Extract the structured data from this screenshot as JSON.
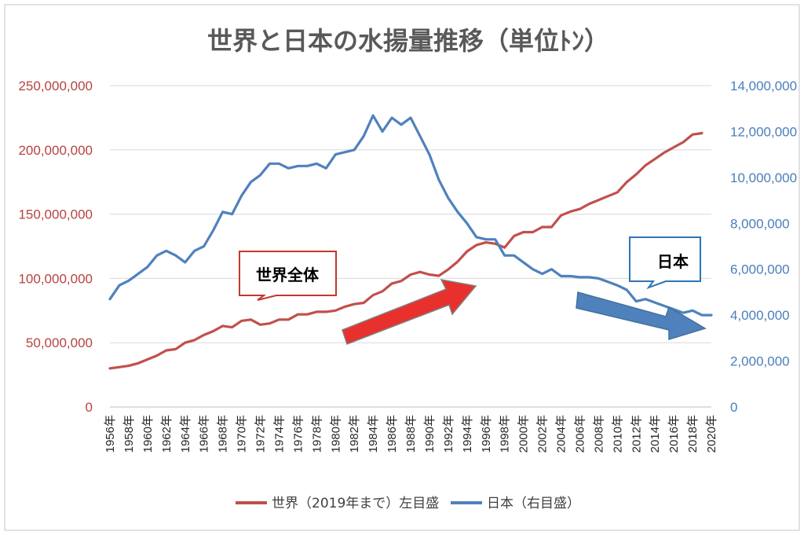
{
  "chart_data": {
    "type": "line",
    "title": "世界と日本の水揚量推移（単位ﾄﾝ）",
    "x": [
      1956,
      1957,
      1958,
      1959,
      1960,
      1961,
      1962,
      1963,
      1964,
      1965,
      1966,
      1967,
      1968,
      1969,
      1970,
      1971,
      1972,
      1973,
      1974,
      1975,
      1976,
      1977,
      1978,
      1979,
      1980,
      1981,
      1982,
      1983,
      1984,
      1985,
      1986,
      1987,
      1988,
      1989,
      1990,
      1991,
      1992,
      1993,
      1994,
      1995,
      1996,
      1997,
      1998,
      1999,
      2000,
      2001,
      2002,
      2003,
      2004,
      2005,
      2006,
      2007,
      2008,
      2009,
      2010,
      2011,
      2012,
      2013,
      2014,
      2015,
      2016,
      2017,
      2018,
      2019,
      2020
    ],
    "x_tick_labels": [
      "1956年",
      "1958年",
      "1960年",
      "1962年",
      "1964年",
      "1966年",
      "1968年",
      "1970年",
      "1972年",
      "1974年",
      "1976年",
      "1978年",
      "1980年",
      "1982年",
      "1984年",
      "1986年",
      "1988年",
      "1990年",
      "1992年",
      "1994年",
      "1996年",
      "1998年",
      "2000年",
      "2002年",
      "2004年",
      "2006年",
      "2008年",
      "2010年",
      "2012年",
      "2014年",
      "2016年",
      "2018年",
      "2020年"
    ],
    "y_left": {
      "lim": [
        0,
        250000000
      ],
      "ticks": [
        "0",
        "50,000,000",
        "100,000,000",
        "150,000,000",
        "200,000,000",
        "250,000,000"
      ],
      "color": "#b7433f"
    },
    "y_right": {
      "lim": [
        0,
        14000000
      ],
      "ticks": [
        "0",
        "2,000,000",
        "4,000,000",
        "6,000,000",
        "8,000,000",
        "10,000,000",
        "12,000,000",
        "14,000,000"
      ],
      "color": "#4a7ebb"
    },
    "series": [
      {
        "name": "世界（2019年まで）左目盛",
        "axis": "left",
        "color": "#c0504d",
        "values": [
          30000000,
          31000000,
          32000000,
          34000000,
          37000000,
          40000000,
          44000000,
          45000000,
          50000000,
          52000000,
          56000000,
          59000000,
          63000000,
          62000000,
          67000000,
          68000000,
          64000000,
          65000000,
          68000000,
          68000000,
          72000000,
          72000000,
          74000000,
          74000000,
          75000000,
          78000000,
          80000000,
          81000000,
          87000000,
          90000000,
          96000000,
          98000000,
          103000000,
          105000000,
          103000000,
          102000000,
          107000000,
          113000000,
          121000000,
          126000000,
          128000000,
          127000000,
          124000000,
          133000000,
          136000000,
          136000000,
          140000000,
          140000000,
          149000000,
          152000000,
          154000000,
          158000000,
          161000000,
          164000000,
          167000000,
          175000000,
          181000000,
          188000000,
          193000000,
          198000000,
          202000000,
          206000000,
          212000000,
          213000000,
          null
        ]
      },
      {
        "name": "日本（右目盛）",
        "axis": "right",
        "color": "#4f81bd",
        "values": [
          4700000,
          5300000,
          5500000,
          5800000,
          6100000,
          6600000,
          6800000,
          6600000,
          6300000,
          6800000,
          7000000,
          7700000,
          8500000,
          8400000,
          9200000,
          9800000,
          10100000,
          10600000,
          10600000,
          10400000,
          10500000,
          10500000,
          10600000,
          10400000,
          11000000,
          11100000,
          11200000,
          11800000,
          12700000,
          12000000,
          12600000,
          12300000,
          12600000,
          11800000,
          11000000,
          9900000,
          9100000,
          8500000,
          8000000,
          7400000,
          7300000,
          7300000,
          6600000,
          6600000,
          6300000,
          6000000,
          5800000,
          6000000,
          5700000,
          5700000,
          5650000,
          5650000,
          5600000,
          5450000,
          5300000,
          5100000,
          4600000,
          4700000,
          4550000,
          4400000,
          4250000,
          4100000,
          4200000,
          4000000,
          4000000
        ]
      }
    ],
    "annotations": {
      "world_callout": "世界全体",
      "japan_callout": "日本"
    },
    "legend_position": "bottom",
    "grid": true
  }
}
